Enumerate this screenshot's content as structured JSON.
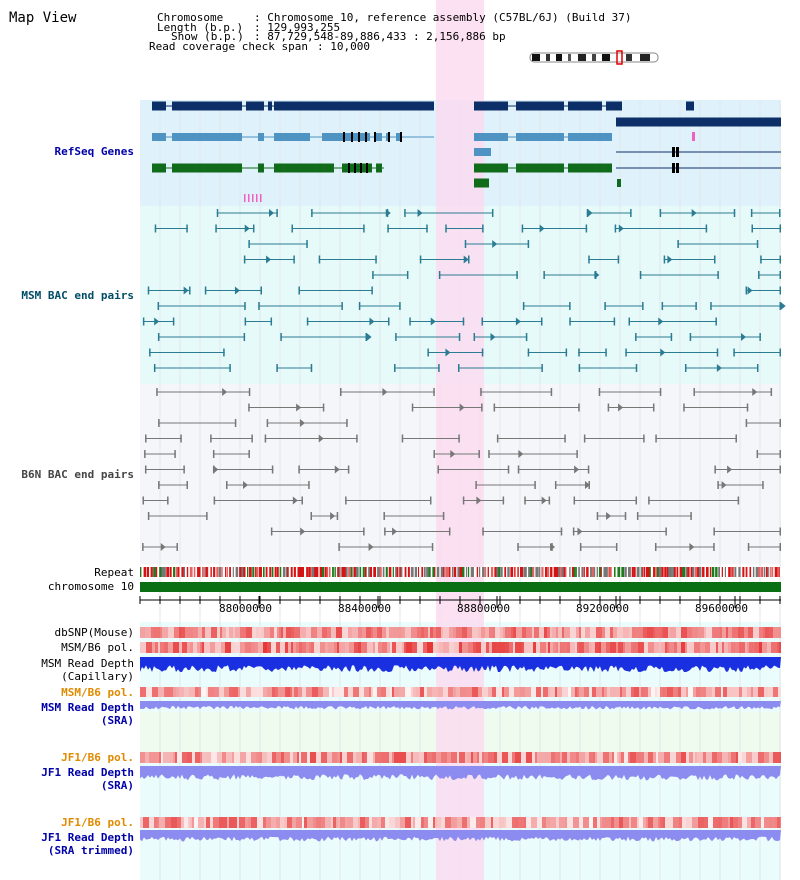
{
  "header": {
    "title": "Map View",
    "chromosome_key": "Chromosome",
    "chromosome_value": ": Chromosome 10, reference assembly (C57BL/6J) (Build 37)",
    "length_key": "Length (b.p.)",
    "length_value": ": 129,993,255",
    "show_key": "Show (b.p.)",
    "show_value": ": 87,729,548-89,886,433 : 2,156,886 bp",
    "coverage_key": "Read coverage check span",
    "coverage_value": ": 10,000"
  },
  "tracks": {
    "refseq": "RefSeq Genes",
    "msm_bac": "MSM BAC end pairs",
    "b6n_bac": "B6N BAC end pairs",
    "repeat": "Repeat",
    "chromosome": "chromosome 10",
    "dbsnp": "dbSNP(Mouse)",
    "msm_b6_pol_1": "MSM/B6 pol.",
    "msm_read_depth_cap_1": "MSM Read Depth",
    "msm_read_depth_cap_2": "(Capillary)",
    "msm_b6_pol_2": "MSM/B6 pol.",
    "msm_read_depth_sra_1": "MSM Read Depth",
    "msm_read_depth_sra_2": "(SRA)",
    "jf1_b6_pol_1": "JF1/B6 pol.",
    "jf1_read_depth_sra_1": "JF1 Read Depth",
    "jf1_read_depth_sra_2": "(SRA)",
    "jf1_b6_pol_2": "JF1/B6 pol.",
    "jf1_read_depth_trim_1": "JF1 Read Depth",
    "jf1_read_depth_trim_2": "(SRA trimmed)"
  },
  "axis": {
    "ticks": [
      "88000000",
      "88400000",
      "88800000",
      "89200000",
      "89600000"
    ]
  },
  "colors": {
    "refseq_bg": "#dff2fb",
    "msm_bg": "#e6fafa",
    "b6n_bg": "#f4f6f9",
    "highlight": "#fadcf0",
    "gene_dark": "#0b2f66",
    "gene_mid": "#4e93c2",
    "gene_green": "#106b1a",
    "bac_msm": "#2b7c93",
    "bac_b6n": "#777777",
    "chromosome_bar": "#0a6e12",
    "depth_capillary": "#1a2fe0",
    "depth_sra": "#8c8cf0"
  }
}
